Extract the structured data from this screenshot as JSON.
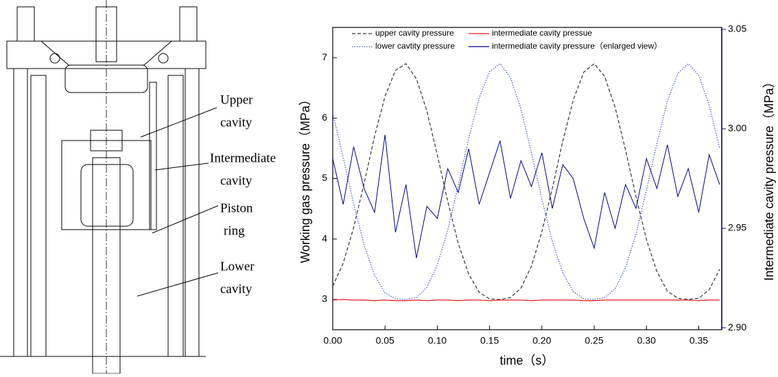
{
  "diagram": {
    "labels": [
      {
        "lines": [
          "Upper",
          "cavity"
        ]
      },
      {
        "lines": [
          "Intermediate",
          "cavity"
        ]
      },
      {
        "lines": [
          "Piston",
          "ring"
        ]
      },
      {
        "lines": [
          "Lower",
          "cavity"
        ]
      }
    ]
  },
  "chart_data": {
    "type": "line",
    "xlabel": "time（s）",
    "ylabel": "Working gas pressure（MPa）",
    "y2label": "Intermediate cavity pressure（MPa）",
    "x": [
      0,
      0.01,
      0.02,
      0.03,
      0.04,
      0.05,
      0.06,
      0.07,
      0.08,
      0.09,
      0.1,
      0.11,
      0.12,
      0.13,
      0.14,
      0.15,
      0.16,
      0.17,
      0.18,
      0.19,
      0.2,
      0.21,
      0.22,
      0.23,
      0.24,
      0.25,
      0.26,
      0.27,
      0.28,
      0.29,
      0.3,
      0.31,
      0.32,
      0.33,
      0.34,
      0.35,
      0.36,
      0.37
    ],
    "series": [
      {
        "name": "upper cavity pressure",
        "color": "#333333",
        "dash": "dashed",
        "values": [
          3.22,
          3.6,
          4.19,
          4.92,
          5.7,
          6.36,
          6.79,
          6.9,
          6.65,
          6.12,
          5.39,
          4.62,
          3.93,
          3.42,
          3.12,
          3.01,
          3.0,
          3.03,
          3.19,
          3.55,
          4.12,
          4.84,
          5.62,
          6.3,
          6.76,
          6.9,
          6.69,
          6.18,
          5.47,
          4.7,
          3.99,
          3.46,
          3.14,
          3.02,
          3.0,
          3.02,
          3.16,
          3.5
        ]
      },
      {
        "name": "intermediate cavity pressue",
        "color": "#e8191c",
        "dash": "solid",
        "values": [
          2.99,
          3.0,
          2.99,
          2.99,
          2.98,
          2.99,
          2.98,
          2.98,
          2.99,
          2.98,
          2.99,
          2.99,
          2.98,
          2.99,
          2.99,
          2.98,
          2.99,
          2.99,
          2.99,
          2.98,
          2.99,
          2.99,
          2.99,
          2.99,
          2.98,
          2.98,
          2.99,
          2.99,
          2.99,
          2.99,
          2.99,
          2.99,
          2.99,
          2.99,
          2.99,
          2.98,
          2.99,
          2.99
        ]
      },
      {
        "name": "lower cavtity pressure",
        "color": "#3a50e0",
        "dash": "dotted",
        "values": [
          6.08,
          5.35,
          4.58,
          3.9,
          3.4,
          3.11,
          3.01,
          3.0,
          3.03,
          3.2,
          3.57,
          4.15,
          4.88,
          5.66,
          6.33,
          6.77,
          6.9,
          6.67,
          6.15,
          5.43,
          4.66,
          3.96,
          3.44,
          3.13,
          3.01,
          3.0,
          3.03,
          3.18,
          3.53,
          4.08,
          4.81,
          5.58,
          6.28,
          6.74,
          6.9,
          6.71,
          6.21,
          5.5
        ]
      },
      {
        "name": "intermediate cavity pressure（enlarged view）",
        "color": "#000080",
        "dash": "solid",
        "axis": "y2",
        "values": [
          2.985,
          2.962,
          2.991,
          2.97,
          2.958,
          2.997,
          2.948,
          2.972,
          2.935,
          2.961,
          2.955,
          2.98,
          2.968,
          2.99,
          2.962,
          2.978,
          2.994,
          2.965,
          2.984,
          2.971,
          2.988,
          2.96,
          2.982,
          2.975,
          2.955,
          2.94,
          2.968,
          2.95,
          2.972,
          2.96,
          2.985,
          2.97,
          2.992,
          2.966,
          2.98,
          2.958,
          2.987,
          2.972
        ]
      }
    ],
    "xlim": [
      0,
      0.372
    ],
    "xticks": [
      {
        "value": 0,
        "label": "0.00"
      },
      0.05,
      {
        "value": 0.1,
        "label": "0.10"
      },
      0.15,
      {
        "value": 0.2,
        "label": "0.20"
      },
      0.25,
      {
        "value": 0.3,
        "label": "0.30"
      },
      0.35
    ],
    "ylim": [
      2.5,
      7.5
    ],
    "yticks": [
      3,
      4,
      5,
      6,
      7
    ],
    "y2lim": [
      2.899,
      3.051
    ],
    "y2ticks": [
      {
        "value": 2.9,
        "label": "2.90"
      },
      2.95,
      {
        "value": 3,
        "label": "3.00"
      },
      3.05
    ],
    "y2color": "#000080",
    "grid": false,
    "legend": "top"
  }
}
